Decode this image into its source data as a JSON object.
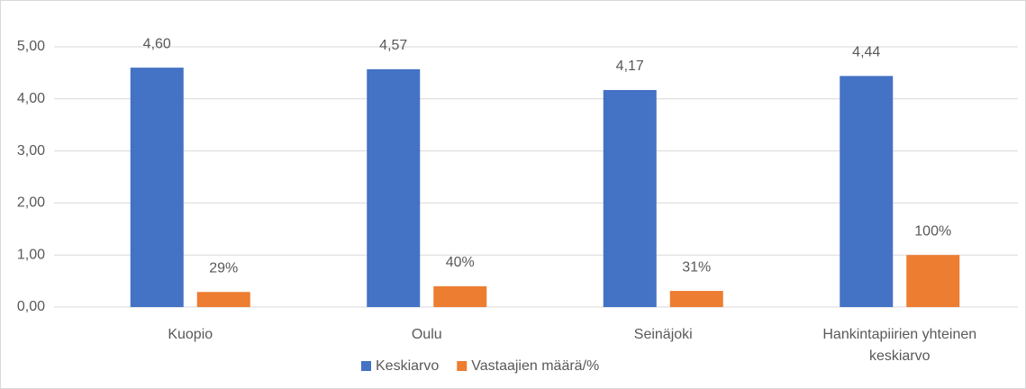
{
  "chart_data": {
    "type": "bar",
    "categories": [
      "Kuopio",
      "Oulu",
      "Seinäjoki",
      "Hankintapiirien yhteinen keskiarvo"
    ],
    "series": [
      {
        "name": "Keskiarvo",
        "color": "#4472c4",
        "values": [
          4.6,
          4.57,
          4.17,
          4.44
        ],
        "value_labels": [
          "4,60",
          "4,57",
          "4,17",
          "4,44"
        ]
      },
      {
        "name": "Vastaajien määrä/%",
        "color": "#ed7d31",
        "values": [
          0.29,
          0.4,
          0.31,
          1.0
        ],
        "value_labels": [
          "29%",
          "40%",
          "31%",
          "100%"
        ]
      }
    ],
    "ylim": [
      0,
      5
    ],
    "yticks": [
      {
        "value": 0,
        "label": "0,00"
      },
      {
        "value": 1,
        "label": "1,00"
      },
      {
        "value": 2,
        "label": "2,00"
      },
      {
        "value": 3,
        "label": "3,00"
      },
      {
        "value": 4,
        "label": "4,00"
      },
      {
        "value": 5,
        "label": "5,00"
      }
    ],
    "grid": true,
    "legend": "bottom"
  }
}
